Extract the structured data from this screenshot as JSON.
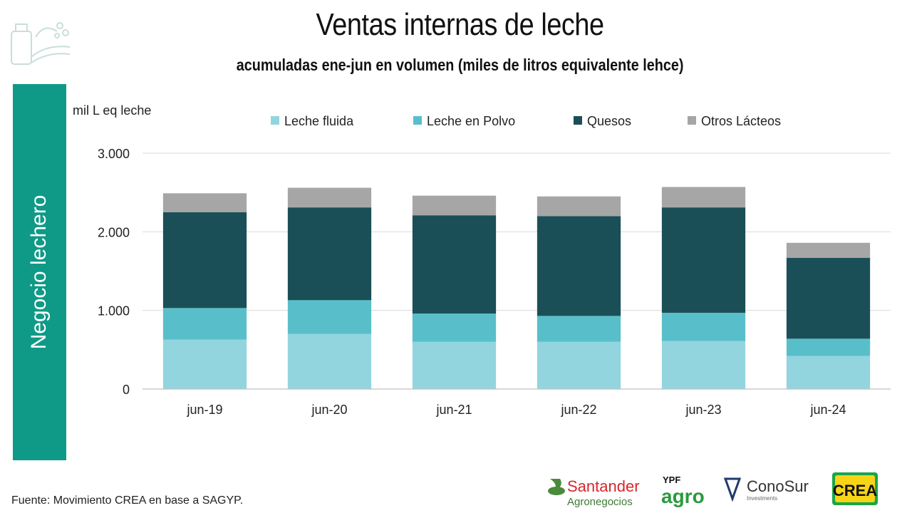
{
  "header": {
    "title": "Ventas internas de leche",
    "subtitle": "acumuladas ene-jun en volumen (miles de litros equivalente lehce)"
  },
  "sidebar": {
    "label": "Negocio lechero"
  },
  "footer": {
    "source": "Fuente: Movimiento CREA en base a SAGYP."
  },
  "logos": [
    {
      "name": "Santander",
      "line1": "Santander",
      "line2": "Agronegocios"
    },
    {
      "name": "YPF agro",
      "line1": "YPF",
      "line2": "agro"
    },
    {
      "name": "ConoSur",
      "line1": "ConoSur",
      "line2": "Investments"
    },
    {
      "name": "CREA",
      "line1": "CREA"
    }
  ],
  "colors": {
    "accent": "#0f9a87",
    "leche_fluida": "#92d5df",
    "leche_en_polvo": "#58bfca",
    "quesos": "#1b4f57",
    "otros_lacteos": "#a6a6a6"
  },
  "chart_data": {
    "type": "bar",
    "stacked": true,
    "ylabel": "mil L eq leche",
    "ylim": [
      0,
      3000
    ],
    "yticks": [
      0,
      1000,
      2000,
      3000
    ],
    "ytick_labels": [
      "0",
      "1.000",
      "2.000",
      "3.000"
    ],
    "grid": true,
    "legend_position": "top",
    "categories": [
      "jun-19",
      "jun-20",
      "jun-21",
      "jun-22",
      "jun-23",
      "jun-24"
    ],
    "series": [
      {
        "name": "Leche fluida",
        "color": "#92d5df",
        "values": [
          630,
          700,
          600,
          600,
          610,
          420
        ]
      },
      {
        "name": "Leche en Polvo",
        "color": "#58bfca",
        "values": [
          400,
          430,
          360,
          330,
          360,
          220
        ]
      },
      {
        "name": "Quesos",
        "color": "#1b4f57",
        "values": [
          1220,
          1180,
          1250,
          1270,
          1340,
          1030
        ]
      },
      {
        "name": "Otros Lácteos",
        "color": "#a6a6a6",
        "values": [
          240,
          250,
          250,
          250,
          260,
          190
        ]
      }
    ]
  }
}
